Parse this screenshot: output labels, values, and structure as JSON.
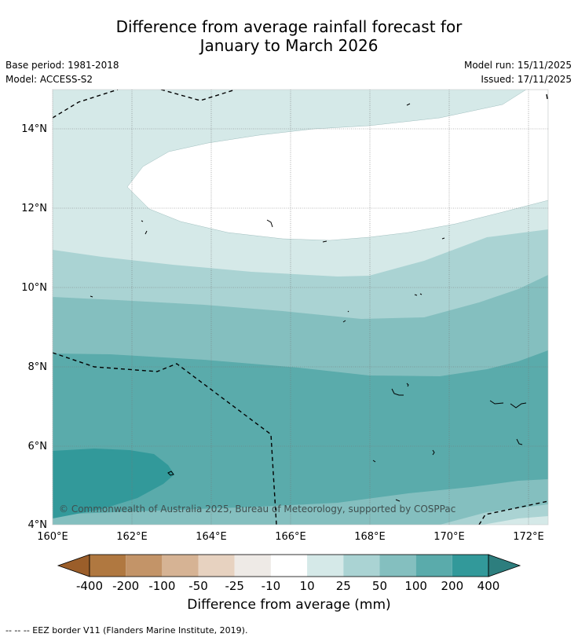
{
  "title_line1": "Difference from average rainfall forecast for",
  "title_line2": "January to March 2026",
  "base_period": "Base period: 1981-2018",
  "model": "Model: ACCESS-S2",
  "model_run": "Model run: 15/11/2025",
  "issued": "Issued: 17/11/2025",
  "copyright": "© Commonwealth of Australia 2025, Bureau of Meteorology, supported by COSPPac",
  "lat_labels": [
    "14°N",
    "12°N",
    "10°N",
    "8°N",
    "6°N",
    "4°N"
  ],
  "lon_labels": [
    "160°E",
    "162°E",
    "164°E",
    "166°E",
    "168°E",
    "170°E",
    "172°E"
  ],
  "colorbar": {
    "title": "Difference from average (mm)",
    "tick_labels": [
      "-400",
      "-200",
      "-100",
      "-50",
      "-25",
      "-10",
      "10",
      "25",
      "50",
      "100",
      "200",
      "400"
    ],
    "colors": [
      "#9b5e2a",
      "#b07840",
      "#c39468",
      "#d6b394",
      "#e7d2c0",
      "#eeeae6",
      "#ffffff",
      "#d5e9e8",
      "#aad3d3",
      "#84bfbf",
      "#5aabab",
      "#32999a",
      "#2d7e7e"
    ]
  },
  "footnote": "--  --  -- EEZ border V11 (Flanders Marine Institute, 2019)."
}
